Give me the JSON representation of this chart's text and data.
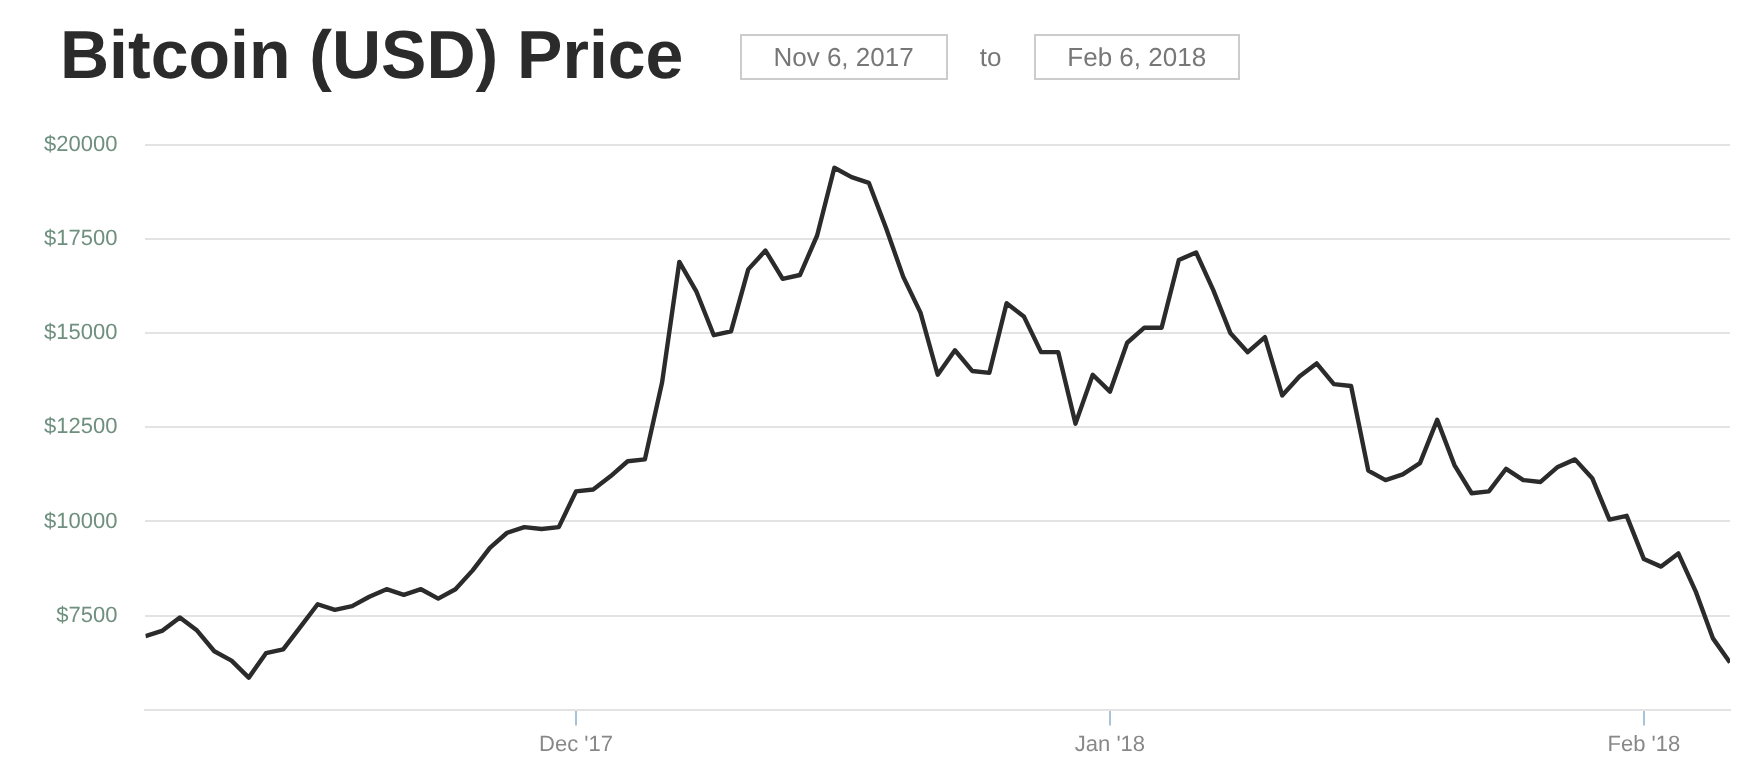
{
  "chart_data": {
    "type": "line",
    "title": "Bitcoin (USD) Price",
    "annotations": [
      "Nov 6, 2017",
      "to",
      "Feb 6, 2018"
    ],
    "x": [
      "2017-11-06",
      "2017-11-07",
      "2017-11-08",
      "2017-11-09",
      "2017-11-10",
      "2017-11-11",
      "2017-11-12",
      "2017-11-13",
      "2017-11-14",
      "2017-11-15",
      "2017-11-16",
      "2017-11-17",
      "2017-11-18",
      "2017-11-19",
      "2017-11-20",
      "2017-11-21",
      "2017-11-22",
      "2017-11-23",
      "2017-11-24",
      "2017-11-25",
      "2017-11-26",
      "2017-11-27",
      "2017-11-28",
      "2017-11-29",
      "2017-11-30",
      "2017-12-01",
      "2017-12-02",
      "2017-12-03",
      "2017-12-04",
      "2017-12-05",
      "2017-12-06",
      "2017-12-07",
      "2017-12-08",
      "2017-12-09",
      "2017-12-10",
      "2017-12-11",
      "2017-12-12",
      "2017-12-13",
      "2017-12-14",
      "2017-12-15",
      "2017-12-16",
      "2017-12-17",
      "2017-12-18",
      "2017-12-19",
      "2017-12-20",
      "2017-12-21",
      "2017-12-22",
      "2017-12-23",
      "2017-12-24",
      "2017-12-25",
      "2017-12-26",
      "2017-12-27",
      "2017-12-28",
      "2017-12-29",
      "2017-12-30",
      "2017-12-31",
      "2018-01-01",
      "2018-01-02",
      "2018-01-03",
      "2018-01-04",
      "2018-01-05",
      "2018-01-06",
      "2018-01-07",
      "2018-01-08",
      "2018-01-09",
      "2018-01-10",
      "2018-01-11",
      "2018-01-12",
      "2018-01-13",
      "2018-01-14",
      "2018-01-15",
      "2018-01-16",
      "2018-01-17",
      "2018-01-18",
      "2018-01-19",
      "2018-01-20",
      "2018-01-21",
      "2018-01-22",
      "2018-01-23",
      "2018-01-24",
      "2018-01-25",
      "2018-01-26",
      "2018-01-27",
      "2018-01-28",
      "2018-01-29",
      "2018-01-30",
      "2018-01-31",
      "2018-02-01",
      "2018-02-02",
      "2018-02-03",
      "2018-02-04",
      "2018-02-05",
      "2018-02-06"
    ],
    "series": [
      {
        "color": "#2b2b2b",
        "values": [
          6950,
          7100,
          7450,
          7100,
          6550,
          6300,
          5850,
          6500,
          6600,
          7200,
          7800,
          7650,
          7750,
          8000,
          8200,
          8050,
          8200,
          7950,
          8200,
          8700,
          9300,
          9700,
          9850,
          9800,
          9850,
          10800,
          10850,
          11200,
          11600,
          11650,
          13700,
          16900,
          16100,
          14950,
          15050,
          16700,
          17200,
          16450,
          16550,
          17600,
          19400,
          19150,
          19000,
          17800,
          16500,
          15550,
          13900,
          14550,
          14000,
          13950,
          15800,
          15450,
          14500,
          14500,
          12600,
          13900,
          13450,
          14750,
          15150,
          15150,
          16950,
          17150,
          16150,
          15000,
          14500,
          14900,
          13350,
          13850,
          14200,
          13650,
          13600,
          11350,
          11100,
          11250,
          11550,
          12700,
          11500,
          10750,
          10800,
          11400,
          11100,
          11050,
          11450,
          11650,
          11150,
          10050,
          10150,
          9000,
          8800,
          9150,
          8150,
          6900,
          6250
        ]
      }
    ],
    "xlim": [
      "2017-11-06",
      "2018-02-06"
    ],
    "xticks": [
      {
        "value": "2017-12-01",
        "label": "Dec '17"
      },
      {
        "value": "2018-01-01",
        "label": "Jan '18"
      },
      {
        "value": "2018-02-01",
        "label": "Feb '18"
      }
    ],
    "ylim": [
      5000,
      20000
    ],
    "yticks": [
      {
        "value": 7500,
        "label": "$7500"
      },
      {
        "value": 10000,
        "label": "$10000"
      },
      {
        "value": 12500,
        "label": "$12500"
      },
      {
        "value": 15000,
        "label": "$15000"
      },
      {
        "value": 17500,
        "label": "$17500"
      },
      {
        "value": 20000,
        "label": "$20000"
      }
    ],
    "grid": "y",
    "legend": false,
    "marker": "none",
    "line_style": "solid"
  }
}
